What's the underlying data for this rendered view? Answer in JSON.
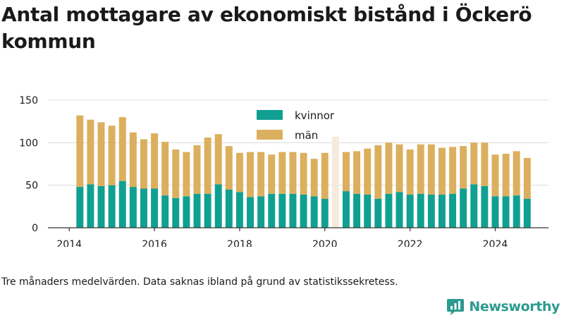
{
  "title": "Antal mottagare av ekonomiskt bistånd i Öckerö kommun",
  "caption": "Tre månaders medelvärden. Data saknas ibland på grund av statistikssekretess.",
  "brand": {
    "name": "Newsworthy",
    "icon": "newsworthy-logo-icon",
    "color": "#2c9a8f"
  },
  "chart_data": {
    "type": "bar",
    "stacked": true,
    "x_start": "2014-04",
    "x_step_months": 3,
    "xlim": [
      "2013-07",
      "2025-04"
    ],
    "xticks": [
      "2014",
      "2016",
      "2018",
      "2020",
      "2022",
      "2024"
    ],
    "yticks": [
      0,
      50,
      100,
      150
    ],
    "ylim": [
      0,
      150
    ],
    "grid": "horizontal",
    "legend_position": "top-center",
    "series": [
      {
        "name": "kvinnor",
        "color": "#10a092",
        "values": [
          48,
          51,
          49,
          50,
          55,
          48,
          46,
          46,
          38,
          35,
          37,
          40,
          40,
          51,
          45,
          42,
          36,
          37,
          40,
          40,
          40,
          39,
          37,
          34,
          null,
          43,
          40,
          39,
          34,
          40,
          42,
          39,
          40,
          39,
          39,
          40,
          46,
          51,
          49,
          37,
          37,
          38,
          34
        ]
      },
      {
        "name": "män",
        "color": "#dcaf5e",
        "values": [
          84,
          76,
          75,
          70,
          75,
          64,
          58,
          65,
          63,
          57,
          52,
          57,
          66,
          59,
          51,
          46,
          53,
          52,
          46,
          49,
          49,
          49,
          44,
          54,
          null,
          46,
          50,
          54,
          63,
          60,
          56,
          53,
          58,
          59,
          55,
          55,
          50,
          49,
          51,
          49,
          50,
          52,
          48
        ]
      }
    ],
    "missing_markers": [
      {
        "x": "2020-04",
        "total": 107,
        "color": "#f5ebdc"
      }
    ]
  }
}
